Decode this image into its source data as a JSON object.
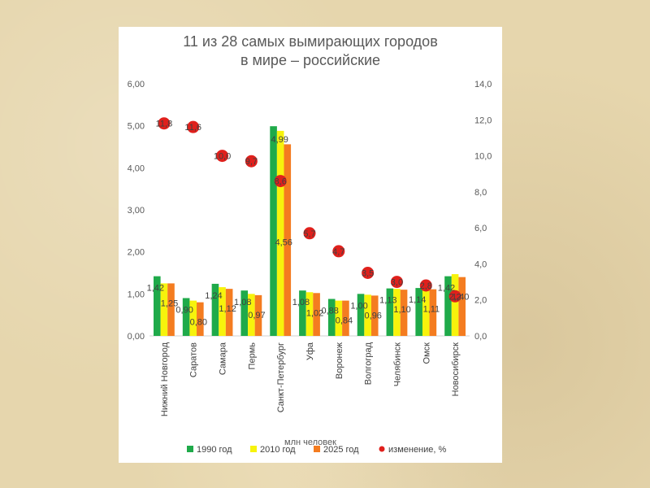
{
  "chart_data": {
    "type": "bar",
    "title_lines": [
      "11 из 28 самых вымирающих городов",
      "в мире – российские"
    ],
    "xlabel": "млн человек",
    "categories": [
      "Нижний Новгород",
      "Саратов",
      "Самара",
      "Пермь",
      "Санкт-Петербург",
      "Уфа",
      "Воронеж",
      "Волгоград",
      "Челябинск",
      "Омск",
      "Новосибирск"
    ],
    "y_left": {
      "min": 0,
      "max": 6,
      "step": 1,
      "ticks": [
        "0,00",
        "1,00",
        "2,00",
        "3,00",
        "4,00",
        "5,00",
        "6,00"
      ]
    },
    "y_right": {
      "min": 0,
      "max": 14,
      "step": 2,
      "ticks": [
        "0,0",
        "2,0",
        "4,0",
        "6,0",
        "8,0",
        "10,0",
        "12,0",
        "14,0"
      ]
    },
    "series": [
      {
        "name": "1990 год",
        "color": "#1faa4a",
        "axis": "left",
        "values": [
          1.42,
          0.9,
          1.24,
          1.08,
          4.99,
          1.08,
          0.88,
          1.0,
          1.13,
          1.14,
          1.42
        ]
      },
      {
        "name": "2010 год",
        "color": "#f7f30c",
        "axis": "left",
        "values": [
          1.25,
          0.84,
          1.16,
          1.0,
          4.88,
          1.04,
          0.84,
          0.98,
          1.12,
          1.15,
          1.47
        ]
      },
      {
        "name": "2025 год",
        "color": "#f47c20",
        "axis": "left",
        "values": [
          1.25,
          0.8,
          1.12,
          0.97,
          4.56,
          1.02,
          0.84,
          0.96,
          1.1,
          1.11,
          1.4
        ]
      },
      {
        "name": "изменение, %",
        "color": "#e0201c",
        "axis": "right",
        "type": "scatter",
        "values": [
          11.8,
          11.6,
          10.0,
          9.7,
          8.6,
          5.7,
          4.7,
          3.5,
          3.0,
          2.8,
          2.2
        ]
      }
    ],
    "data_labels": [
      [
        {
          "series": 0,
          "text": "1,42"
        },
        {
          "series": 2,
          "text": "1,25"
        },
        {
          "series": 3,
          "text": "11,8"
        }
      ],
      [
        {
          "series": 0,
          "text": "0,90"
        },
        {
          "series": 2,
          "text": "0,80"
        },
        {
          "series": 3,
          "text": "11,6"
        }
      ],
      [
        {
          "series": 0,
          "text": "1,24"
        },
        {
          "series": 2,
          "text": "1,12"
        },
        {
          "series": 3,
          "text": "10,0"
        }
      ],
      [
        {
          "series": 0,
          "text": "1,08"
        },
        {
          "series": 2,
          "text": "0,97"
        },
        {
          "series": 3,
          "text": "9,7"
        }
      ],
      [
        {
          "series": 0,
          "text": "4,99"
        },
        {
          "series": 2,
          "text": "4,56"
        },
        {
          "series": 3,
          "text": "8,6"
        }
      ],
      [
        {
          "series": 0,
          "text": "1,08"
        },
        {
          "series": 2,
          "text": "1,02"
        },
        {
          "series": 3,
          "text": "5,7"
        }
      ],
      [
        {
          "series": 0,
          "text": "0,88"
        },
        {
          "series": 2,
          "text": "0,84"
        },
        {
          "series": 3,
          "text": "4,7"
        }
      ],
      [
        {
          "series": 0,
          "text": "1,00"
        },
        {
          "series": 2,
          "text": "0,96"
        },
        {
          "series": 3,
          "text": "3,5"
        }
      ],
      [
        {
          "series": 0,
          "text": "1,13"
        },
        {
          "series": 2,
          "text": "1,10"
        },
        {
          "series": 3,
          "text": "3,0"
        }
      ],
      [
        {
          "series": 0,
          "text": "1,14"
        },
        {
          "series": 2,
          "text": "1,11"
        },
        {
          "series": 3,
          "text": "2,8"
        }
      ],
      [
        {
          "series": 0,
          "text": "1,42"
        },
        {
          "series": 2,
          "text": "1,40"
        },
        {
          "series": 3,
          "text": "2,2"
        }
      ]
    ],
    "legend_position": "bottom",
    "grid": false
  }
}
